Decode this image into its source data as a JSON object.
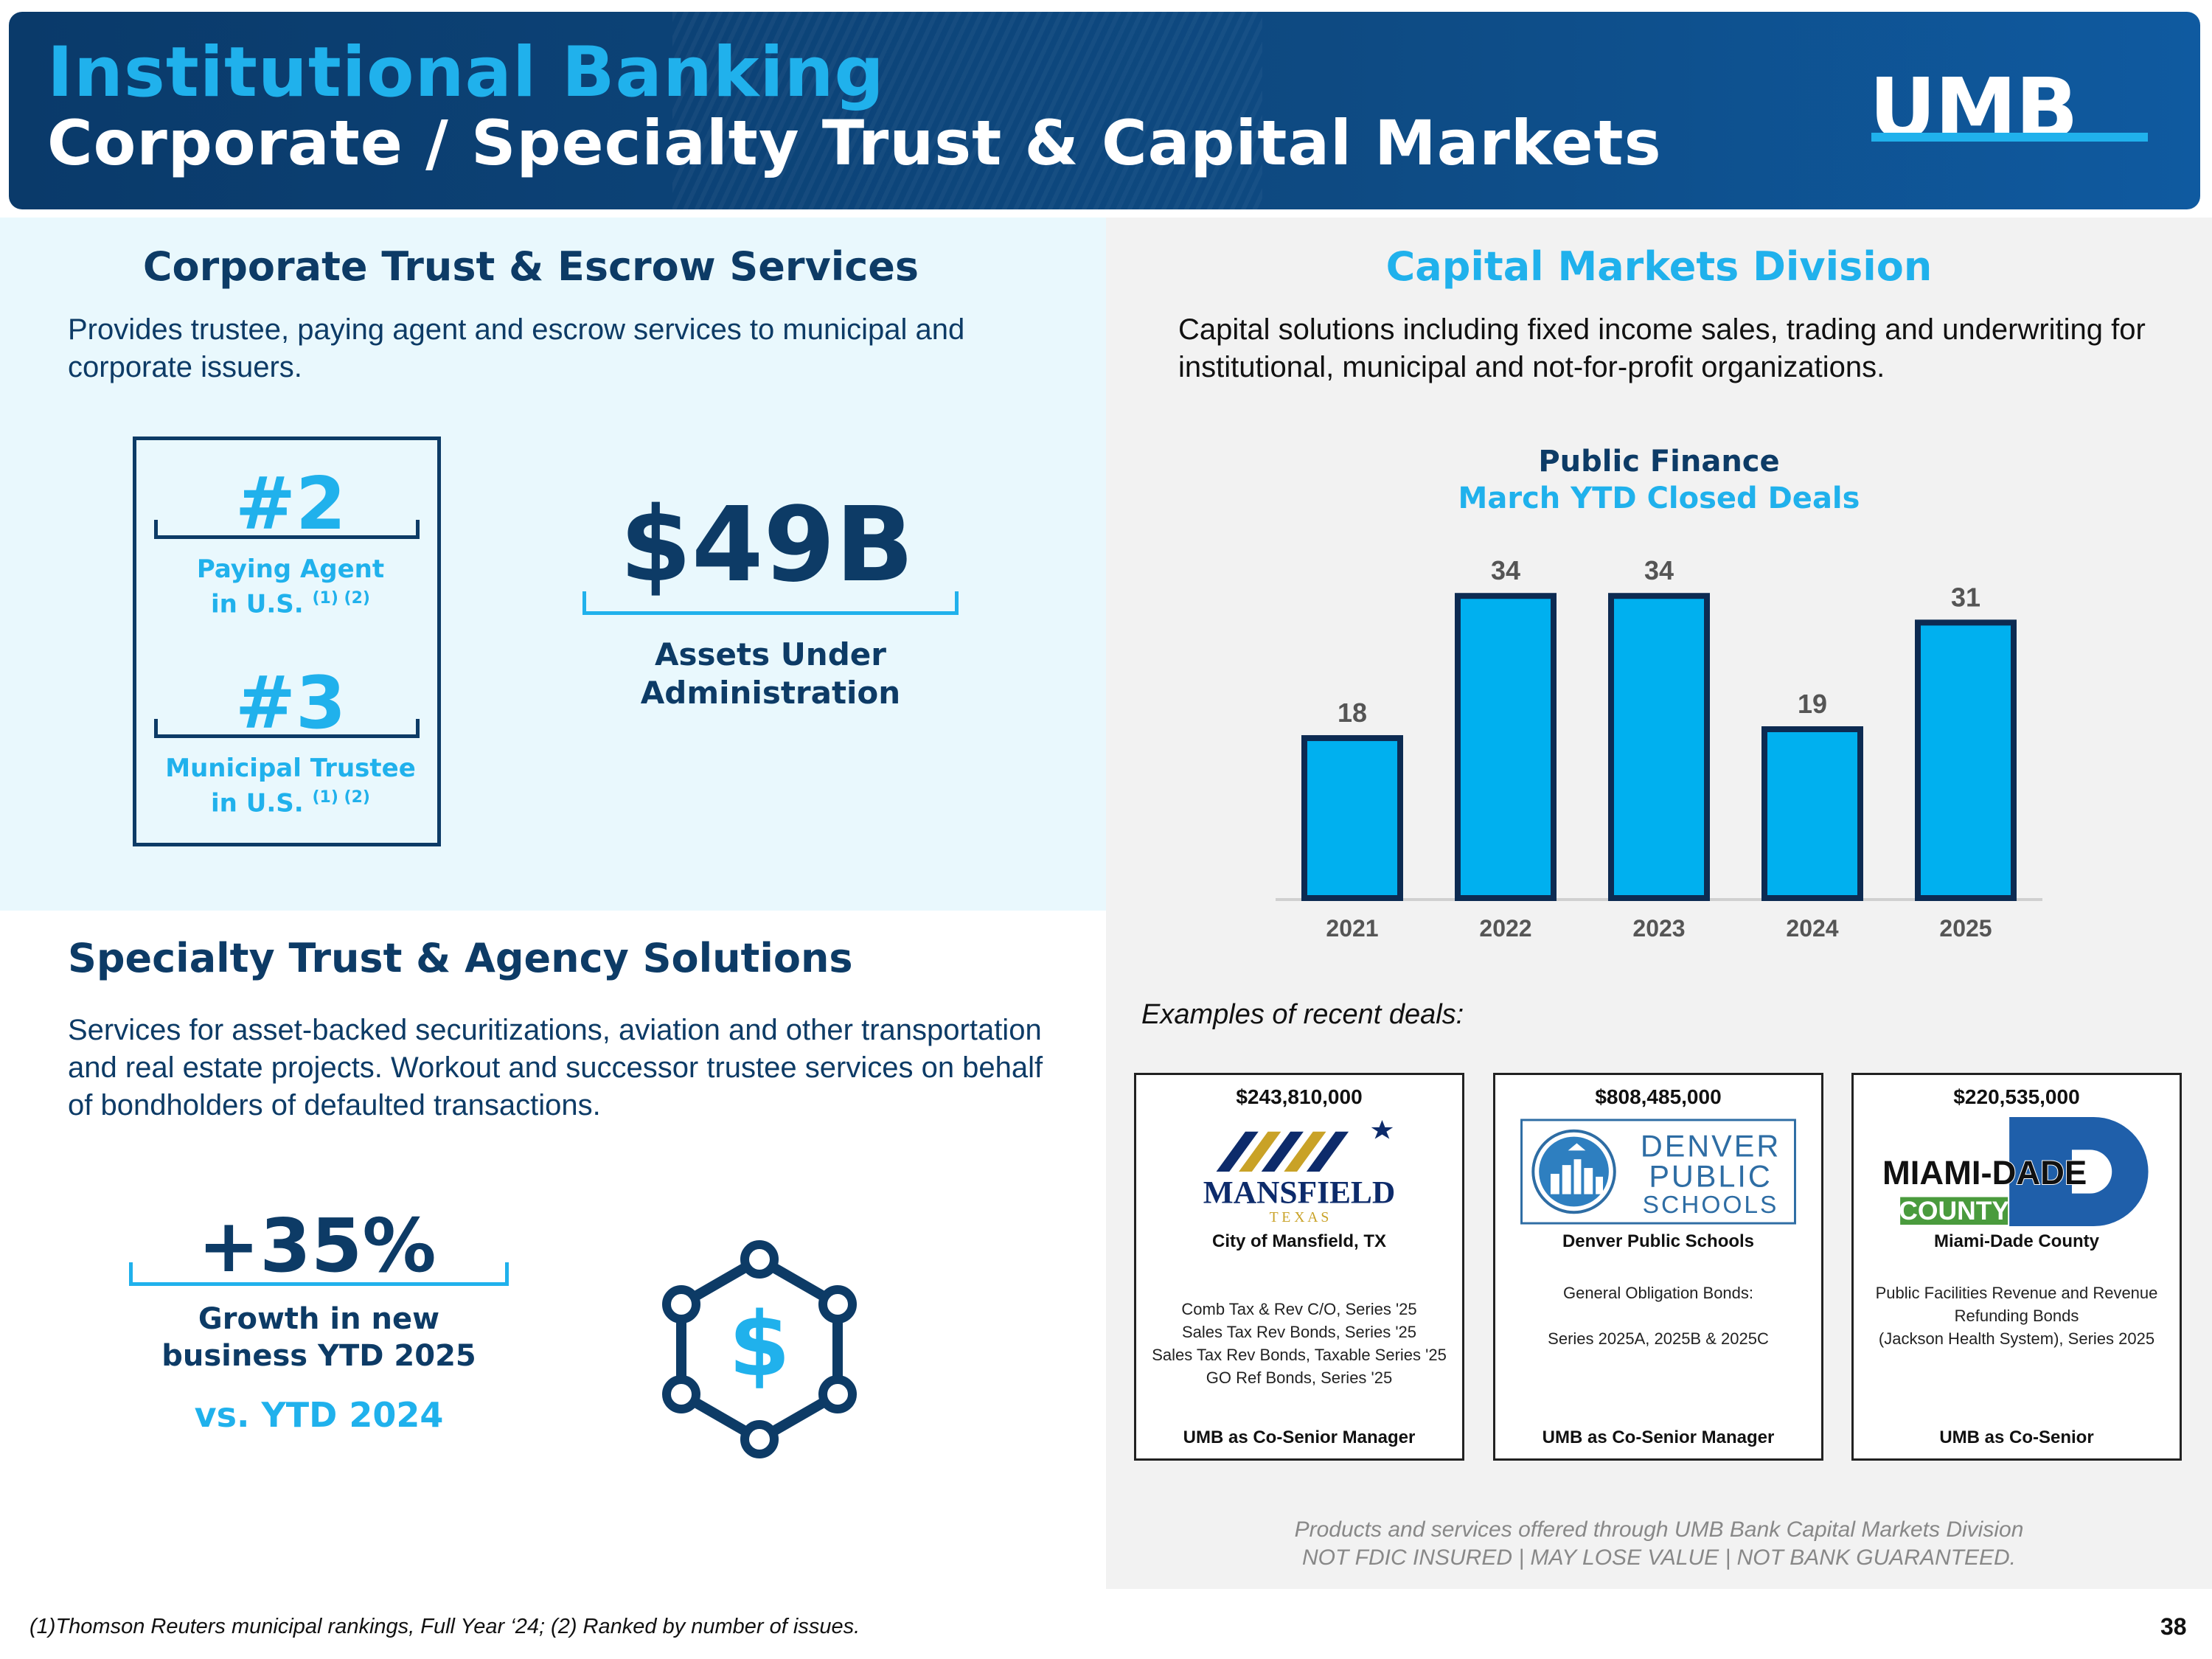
{
  "header": {
    "title": "Institutional Banking",
    "subtitle": "Corporate / Specialty Trust & Capital Markets",
    "logo_text": "UMB"
  },
  "corporate_trust": {
    "heading": "Corporate Trust & Escrow Services",
    "description": "Provides trustee, paying agent and escrow services to municipal and corporate issuers.",
    "rankings": [
      {
        "rank": "#2",
        "label_line1": "Paying Agent",
        "label_line2": "in U.S.",
        "footnote_ref": "(1) (2)"
      },
      {
        "rank": "#3",
        "label_line1": "Municipal Trustee",
        "label_line2": "in U.S.",
        "footnote_ref": "(1) (2)"
      }
    ],
    "aum_value": "$49B",
    "aum_label_line1": "Assets Under",
    "aum_label_line2": "Administration"
  },
  "specialty_trust": {
    "heading": "Specialty Trust & Agency Solutions",
    "description": "Services for asset-backed securitizations, aviation and other transportation and real estate projects. Workout and successor trustee services on behalf of bondholders of defaulted transactions.",
    "growth_value": "+35%",
    "growth_label_line1": "Growth in new",
    "growth_label_line2": "business YTD 2025",
    "growth_compare": "vs. YTD 2024",
    "icon": "dollar-network-icon"
  },
  "capital_markets": {
    "heading": "Capital Markets Division",
    "description": "Capital solutions including fixed income sales, trading and underwriting for institutional, municipal and not-for-profit organizations.",
    "examples_label": "Examples of recent deals:",
    "deals": [
      {
        "amount": "$243,810,000",
        "logo_text": "MANSFIELD",
        "logo_subtext": "T E X A S",
        "name": "City of Mansfield, TX",
        "details": [
          "Comb Tax & Rev C/O, Series '25",
          "Sales Tax Rev Bonds, Series '25",
          "Sales Tax Rev Bonds, Taxable Series '25",
          "GO Ref Bonds, Series '25"
        ],
        "role": "UMB as Co-Senior Manager"
      },
      {
        "amount": "$808,485,000",
        "logo_text": [
          "DENVER",
          "PUBLIC",
          "SCHOOLS"
        ],
        "name": "Denver Public Schools",
        "details": [
          "General Obligation Bonds:",
          "",
          "Series 2025A, 2025B & 2025C"
        ],
        "role": "UMB as Co-Senior Manager"
      },
      {
        "amount": "$220,535,000",
        "logo_text": "MIAMI-DADE",
        "logo_subtext": "COUNTY",
        "name": "Miami-Dade County",
        "details": [
          "Public Facilities Revenue and Revenue",
          "Refunding Bonds",
          "(Jackson Health System), Series 2025"
        ],
        "role": "UMB as Co-Senior"
      }
    ],
    "disclaimer_line1": "Products and services offered through UMB Bank Capital Markets Division",
    "disclaimer_line2": "NOT FDIC INSURED | MAY LOSE VALUE  | NOT BANK GUARANTEED."
  },
  "chart_data": {
    "type": "bar",
    "title": "Public Finance",
    "subtitle": "March YTD Closed Deals",
    "categories": [
      "2021",
      "2022",
      "2023",
      "2024",
      "2025"
    ],
    "values": [
      18,
      34,
      34,
      19,
      31
    ],
    "ylim": [
      0,
      38
    ],
    "grid": false,
    "data_labels": true,
    "bar_color": "#00b0ef",
    "bar_border_color": "#0d2b52"
  },
  "footer": {
    "footnote": "(1)Thomson Reuters municipal rankings, Full Year ‘24; (2) Ranked by number of issues.",
    "page_number": "38"
  }
}
